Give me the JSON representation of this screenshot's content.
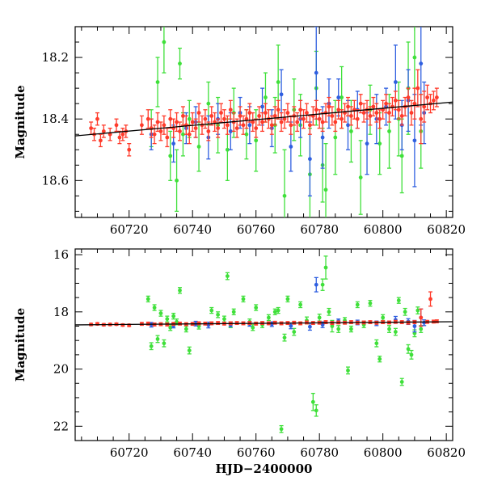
{
  "chart_data": [
    {
      "type": "scatter",
      "xlabel": "",
      "ylabel": "Magnitude",
      "xlim": [
        60703,
        60822
      ],
      "ylim": [
        18.72,
        18.1
      ],
      "y_inverted": true,
      "xticks": [
        "60720",
        "60740",
        "60760",
        "60780",
        "60800",
        "60820"
      ],
      "yticks": [
        "18.2",
        "18.4",
        "18.6"
      ],
      "fit_line": {
        "x": [
          60703,
          60822
        ],
        "y": [
          18.455,
          18.345
        ],
        "color": "#000000"
      },
      "series": [
        {
          "color": "#ff3b2b",
          "x": [
            60708,
            60709,
            60710,
            60711,
            60712,
            60714,
            60716,
            60717,
            60718,
            60719,
            60720,
            60724,
            60726,
            60727,
            60728,
            60729,
            60730,
            60731,
            60732,
            60733,
            60734,
            60735,
            60736,
            60737,
            60738,
            60739,
            60740,
            60741,
            60742,
            60743,
            60744,
            60745,
            60746,
            60747,
            60748,
            60749,
            60750,
            60751,
            60752,
            60753,
            60754,
            60755,
            60756,
            60757,
            60758,
            60759,
            60760,
            60761,
            60762,
            60763,
            60764,
            60765,
            60766,
            60767,
            60768,
            60769,
            60770,
            60771,
            60772,
            60773,
            60774,
            60775,
            60776,
            60777,
            60778,
            60779,
            60780,
            60781,
            60782,
            60783,
            60784,
            60785,
            60786,
            60787,
            60788,
            60789,
            60790,
            60791,
            60792,
            60793,
            60794,
            60795,
            60796,
            60797,
            60798,
            60799,
            60800,
            60801,
            60802,
            60803,
            60804,
            60805,
            60806,
            60807,
            60808,
            60809,
            60810,
            60811,
            60812,
            60813,
            60814,
            60815,
            60816,
            60817
          ],
          "y": [
            18.43,
            18.45,
            18.4,
            18.47,
            18.44,
            18.45,
            18.42,
            18.46,
            18.45,
            18.44,
            18.5,
            18.42,
            18.4,
            18.43,
            18.45,
            18.41,
            18.44,
            18.42,
            18.46,
            18.4,
            18.43,
            18.41,
            18.44,
            18.39,
            18.42,
            18.45,
            18.41,
            18.43,
            18.38,
            18.42,
            18.4,
            18.44,
            18.39,
            18.41,
            18.43,
            18.38,
            18.4,
            18.42,
            18.37,
            18.41,
            18.43,
            18.39,
            18.42,
            18.4,
            18.38,
            18.41,
            18.43,
            18.39,
            18.41,
            18.38,
            18.4,
            18.42,
            18.39,
            18.37,
            18.41,
            18.4,
            18.38,
            18.42,
            18.39,
            18.41,
            18.37,
            18.4,
            18.38,
            18.42,
            18.39,
            18.37,
            18.4,
            18.41,
            18.38,
            18.36,
            18.39,
            18.41,
            18.37,
            18.4,
            18.38,
            18.36,
            18.39,
            18.37,
            18.4,
            18.35,
            18.38,
            18.37,
            18.39,
            18.36,
            18.38,
            18.4,
            18.37,
            18.35,
            18.38,
            18.36,
            18.34,
            18.37,
            18.39,
            18.36,
            18.33,
            18.38,
            18.35,
            18.3,
            18.4,
            18.36,
            18.33,
            18.35,
            18.34,
            18.33
          ],
          "err": [
            0.02,
            0.02,
            0.02,
            0.02,
            0.02,
            0.02,
            0.02,
            0.02,
            0.02,
            0.02,
            0.02,
            0.03,
            0.03,
            0.03,
            0.03,
            0.03,
            0.03,
            0.03,
            0.03,
            0.03,
            0.03,
            0.03,
            0.03,
            0.03,
            0.03,
            0.03,
            0.03,
            0.03,
            0.03,
            0.03,
            0.03,
            0.03,
            0.03,
            0.03,
            0.03,
            0.03,
            0.03,
            0.03,
            0.03,
            0.03,
            0.03,
            0.03,
            0.03,
            0.03,
            0.03,
            0.03,
            0.03,
            0.03,
            0.03,
            0.03,
            0.03,
            0.03,
            0.03,
            0.03,
            0.03,
            0.03,
            0.03,
            0.03,
            0.03,
            0.03,
            0.03,
            0.03,
            0.03,
            0.03,
            0.03,
            0.03,
            0.03,
            0.03,
            0.03,
            0.03,
            0.03,
            0.03,
            0.03,
            0.03,
            0.03,
            0.03,
            0.03,
            0.03,
            0.03,
            0.03,
            0.03,
            0.03,
            0.03,
            0.03,
            0.03,
            0.03,
            0.03,
            0.03,
            0.03,
            0.03,
            0.03,
            0.03,
            0.03,
            0.03,
            0.03,
            0.04,
            0.05,
            0.06,
            0.08,
            0.05,
            0.04,
            0.03,
            0.03,
            0.03
          ]
        },
        {
          "color": "#2f5fe0",
          "x": [
            60727,
            60734,
            60738,
            60741,
            60745,
            60748,
            60752,
            60755,
            60758,
            60762,
            60765,
            60768,
            60771,
            60774,
            60777,
            60779,
            60781,
            60783,
            60786,
            60789,
            60792,
            60795,
            60798,
            60801,
            60804,
            60806,
            60808,
            60810,
            60812,
            60813
          ],
          "y": [
            18.45,
            18.48,
            18.43,
            18.41,
            18.46,
            18.4,
            18.44,
            18.38,
            18.42,
            18.36,
            18.43,
            18.32,
            18.49,
            18.4,
            18.53,
            18.25,
            18.46,
            18.35,
            18.33,
            18.42,
            18.37,
            18.48,
            18.4,
            18.36,
            18.28,
            18.42,
            18.34,
            18.47,
            18.22,
            18.38
          ],
          "err": [
            0.05,
            0.06,
            0.05,
            0.05,
            0.07,
            0.05,
            0.06,
            0.05,
            0.06,
            0.06,
            0.06,
            0.08,
            0.08,
            0.06,
            0.12,
            0.15,
            0.1,
            0.08,
            0.06,
            0.08,
            0.06,
            0.1,
            0.08,
            0.06,
            0.12,
            0.08,
            0.1,
            0.15,
            0.2,
            0.1
          ]
        },
        {
          "color": "#3fe03a",
          "x": [
            60727,
            60729,
            60731,
            60733,
            60735,
            60736,
            60737,
            60739,
            60742,
            60745,
            60748,
            60751,
            60753,
            60757,
            60760,
            60763,
            60766,
            60767,
            60769,
            60772,
            60774,
            60777,
            60779,
            60781,
            60782,
            60785,
            60787,
            60790,
            60793,
            60796,
            60799,
            60802,
            60805,
            60806,
            60808,
            60810,
            60812
          ],
          "y": [
            18.43,
            18.28,
            18.15,
            18.52,
            18.6,
            18.22,
            18.45,
            18.4,
            18.49,
            18.35,
            18.42,
            18.5,
            18.38,
            18.45,
            18.47,
            18.33,
            18.42,
            18.28,
            18.65,
            18.37,
            18.42,
            18.58,
            18.3,
            18.55,
            18.63,
            18.46,
            18.33,
            18.44,
            18.59,
            18.37,
            18.48,
            18.44,
            18.4,
            18.52,
            18.3,
            18.2,
            18.44
          ],
          "err": [
            0.06,
            0.08,
            0.1,
            0.08,
            0.1,
            0.05,
            0.07,
            0.06,
            0.08,
            0.07,
            0.09,
            0.1,
            0.08,
            0.08,
            0.1,
            0.08,
            0.09,
            0.12,
            0.15,
            0.1,
            0.1,
            0.15,
            0.12,
            0.12,
            0.15,
            0.12,
            0.1,
            0.1,
            0.12,
            0.08,
            0.1,
            0.12,
            0.12,
            0.12,
            0.15,
            0.15,
            0.12
          ]
        }
      ]
    },
    {
      "type": "scatter",
      "xlabel": "HJD−2400000",
      "ylabel": "Magnitude",
      "xlim": [
        60703,
        60822
      ],
      "ylim": [
        22.5,
        15.8
      ],
      "y_inverted": true,
      "xticks": [
        "60720",
        "60740",
        "60760",
        "60780",
        "60800",
        "60820"
      ],
      "yticks": [
        "16",
        "18",
        "20",
        "22"
      ],
      "fit_line": {
        "x": [
          60703,
          60822
        ],
        "y": [
          18.455,
          18.345
        ],
        "color": "#000000"
      },
      "series": [
        {
          "color": "#ff3b2b",
          "x": [
            60708,
            60710,
            60712,
            60714,
            60716,
            60718,
            60720,
            60724,
            60726,
            60728,
            60730,
            60732,
            60734,
            60736,
            60738,
            60740,
            60742,
            60744,
            60746,
            60748,
            60750,
            60752,
            60754,
            60756,
            60758,
            60760,
            60762,
            60764,
            60766,
            60768,
            60770,
            60772,
            60774,
            60776,
            60778,
            60780,
            60782,
            60784,
            60786,
            60788,
            60790,
            60792,
            60794,
            60796,
            60798,
            60800,
            60802,
            60804,
            60806,
            60808,
            60810,
            60812,
            60814,
            60815,
            60816,
            60817
          ],
          "y": [
            18.44,
            18.42,
            18.45,
            18.44,
            18.43,
            18.46,
            18.47,
            18.42,
            18.41,
            18.44,
            18.43,
            18.44,
            18.42,
            18.41,
            18.43,
            18.42,
            18.4,
            18.41,
            18.4,
            18.39,
            18.41,
            18.4,
            18.39,
            18.4,
            18.39,
            18.41,
            18.39,
            18.4,
            18.38,
            18.4,
            18.39,
            18.38,
            18.4,
            18.37,
            18.39,
            18.38,
            18.36,
            18.39,
            18.37,
            18.38,
            18.36,
            18.38,
            18.37,
            18.36,
            18.38,
            18.36,
            18.37,
            18.35,
            18.36,
            18.38,
            18.36,
            18.2,
            18.35,
            17.55,
            18.34,
            18.33
          ],
          "err": [
            0.04,
            0.04,
            0.04,
            0.04,
            0.04,
            0.04,
            0.04,
            0.05,
            0.05,
            0.05,
            0.05,
            0.05,
            0.05,
            0.05,
            0.05,
            0.05,
            0.05,
            0.05,
            0.05,
            0.05,
            0.05,
            0.05,
            0.05,
            0.05,
            0.05,
            0.05,
            0.05,
            0.05,
            0.05,
            0.05,
            0.05,
            0.05,
            0.05,
            0.05,
            0.05,
            0.05,
            0.05,
            0.05,
            0.05,
            0.05,
            0.05,
            0.05,
            0.05,
            0.05,
            0.05,
            0.05,
            0.05,
            0.05,
            0.05,
            0.05,
            0.05,
            0.3,
            0.05,
            0.25,
            0.05,
            0.05
          ]
        },
        {
          "color": "#2f5fe0",
          "x": [
            60727,
            60734,
            60741,
            60745,
            60752,
            60758,
            60765,
            60771,
            60777,
            60779,
            60781,
            60786,
            60792,
            60798,
            60804,
            60808,
            60810,
            60812,
            60813
          ],
          "y": [
            18.45,
            18.48,
            18.41,
            18.46,
            18.44,
            18.42,
            18.43,
            18.49,
            18.52,
            17.05,
            18.45,
            18.33,
            18.37,
            18.4,
            18.28,
            18.34,
            18.5,
            18.2,
            18.38
          ],
          "err": [
            0.08,
            0.08,
            0.08,
            0.1,
            0.08,
            0.08,
            0.08,
            0.1,
            0.12,
            0.25,
            0.1,
            0.08,
            0.08,
            0.08,
            0.12,
            0.1,
            0.2,
            0.3,
            0.1
          ]
        },
        {
          "color": "#3fe03a",
          "x": [
            60726,
            60727,
            60728,
            60729,
            60730,
            60731,
            60732,
            60733,
            60734,
            60735,
            60736,
            60738,
            60739,
            60742,
            60746,
            60748,
            60750,
            60751,
            60752,
            60753,
            60756,
            60758,
            60759,
            60760,
            60762,
            60764,
            60766,
            60767,
            60768,
            60769,
            60770,
            60772,
            60774,
            60776,
            60778,
            60779,
            60780,
            60781,
            60782,
            60783,
            60784,
            60786,
            60788,
            60789,
            60790,
            60792,
            60794,
            60796,
            60798,
            60799,
            60800,
            60802,
            60804,
            60805,
            60806,
            60807,
            60808,
            60809,
            60810,
            60811,
            60812
          ],
          "y": [
            17.55,
            19.2,
            17.85,
            18.95,
            18.05,
            19.1,
            18.25,
            18.55,
            18.15,
            18.35,
            17.25,
            18.6,
            19.35,
            18.5,
            17.95,
            18.1,
            18.25,
            16.75,
            18.45,
            18.0,
            17.55,
            18.35,
            18.55,
            17.85,
            18.45,
            18.2,
            18.0,
            17.95,
            22.1,
            18.9,
            17.55,
            18.7,
            17.75,
            18.3,
            21.15,
            21.45,
            18.2,
            17.05,
            16.45,
            18.0,
            18.5,
            18.6,
            18.3,
            20.05,
            18.6,
            17.75,
            18.45,
            17.7,
            19.1,
            19.65,
            18.2,
            18.6,
            18.7,
            17.6,
            20.45,
            18.0,
            19.3,
            19.5,
            18.75,
            17.95,
            18.6
          ],
          "err": [
            0.1,
            0.12,
            0.1,
            0.12,
            0.1,
            0.12,
            0.1,
            0.1,
            0.1,
            0.1,
            0.1,
            0.1,
            0.12,
            0.1,
            0.1,
            0.1,
            0.1,
            0.12,
            0.1,
            0.1,
            0.1,
            0.1,
            0.1,
            0.1,
            0.1,
            0.1,
            0.1,
            0.1,
            0.12,
            0.12,
            0.1,
            0.12,
            0.1,
            0.12,
            0.3,
            0.2,
            0.12,
            0.2,
            0.4,
            0.12,
            0.2,
            0.12,
            0.1,
            0.12,
            0.1,
            0.1,
            0.1,
            0.1,
            0.12,
            0.1,
            0.1,
            0.12,
            0.12,
            0.1,
            0.12,
            0.12,
            0.15,
            0.15,
            0.12,
            0.12,
            0.12
          ]
        }
      ]
    }
  ]
}
